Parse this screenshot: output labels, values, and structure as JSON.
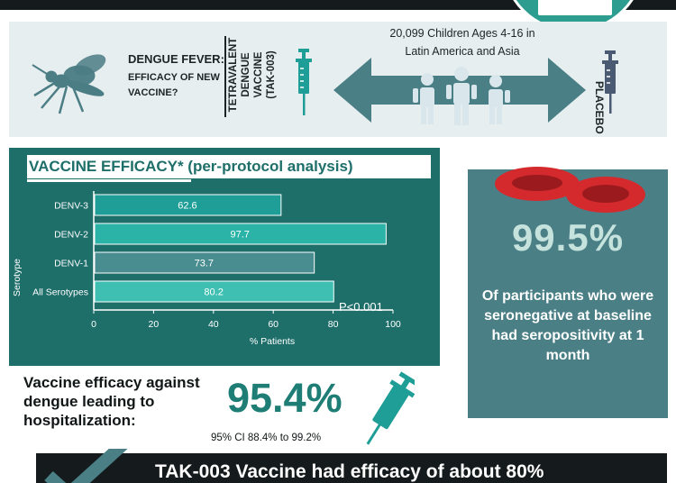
{
  "header": {
    "dengue_title": "DENGUE FEVER:",
    "dengue_subtitle": "EFFICACY OF NEW VACCINE?",
    "vaccine_name": "TETRAVALENT DENGUE VACCINE (TAK-003)",
    "children_line1": "20,099 Children Ages 4-16 in",
    "children_line2": "Latin America and Asia",
    "placebo": "PLACEBO"
  },
  "chart_data": {
    "type": "bar",
    "orientation": "horizontal",
    "title": "VACCINE EFFICACY* (per-protocol analysis)",
    "categories": [
      "DENV-3",
      "DENV-2",
      "DENV-1",
      "All Serotypes"
    ],
    "values": [
      62.6,
      97.7,
      73.7,
      80.2
    ],
    "value_labels": [
      "62.6",
      "97.7",
      "73.7",
      "80.2"
    ],
    "xlabel": "% Patients",
    "ylabel": "Serotype",
    "xlim": [
      0,
      100
    ],
    "xticks": [
      "0",
      "20",
      "40",
      "60",
      "80",
      "100"
    ],
    "annotation": "P<0.001",
    "bar_colors": [
      "#1e9e96",
      "#2ab3a6",
      "#4a8d91",
      "#3ebfb1"
    ],
    "grid": false,
    "legend": "none"
  },
  "seropositivity": {
    "value": "99.5%",
    "text": "Of participants who were seronegative at baseline had seropositivity at 1 month"
  },
  "hospitalization": {
    "label": "Vaccine efficacy against dengue leading to hospitalization:",
    "value": "95.4%",
    "ci": "95% CI 88.4% to 99.2%"
  },
  "conclusion": {
    "text": "TAK-003 Vaccine had efficacy of about 80%"
  },
  "colors": {
    "teal_dark": "#1e6e6a",
    "teal_accent": "#1e7d75",
    "slate_teal": "#4a7f86",
    "header_bg": "#e7eef0",
    "red_cell": "#d42a2e",
    "black_bar": "#151b1c"
  },
  "icons": [
    "mosquito-icon",
    "syringe-icon",
    "children-icon",
    "double-arrow-icon",
    "red-blood-cell-icon",
    "checkmark-icon",
    "logo-icon"
  ]
}
